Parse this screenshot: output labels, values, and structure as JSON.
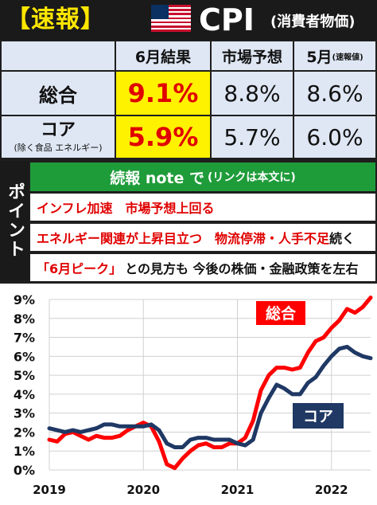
{
  "header": {
    "badge": "【速報】",
    "flag_icon": "us-flag-icon",
    "title": "CPI",
    "subtitle": "(消費者物価)"
  },
  "table": {
    "col_headers": [
      "6月結果",
      "市場予想",
      "5月"
    ],
    "col3_small": "(速報値)",
    "rows": [
      {
        "label": "総合",
        "sub": "",
        "result": "9.1%",
        "forecast": "8.8%",
        "prev": "8.6%"
      },
      {
        "label": "コア",
        "sub": "(除く食品 エネルギー)",
        "result": "5.9%",
        "forecast": "5.7%",
        "prev": "6.0%"
      }
    ],
    "highlight_color": "#fff200",
    "highlight_text_color": "#e00000"
  },
  "points": {
    "side_label": "ポイント",
    "note_title": "続報 note で",
    "note_sub": "(リンクは本文に)",
    "line1": "インフレ加速　市場予想上回る",
    "line2_red": "エネルギー関連が上昇目立つ　物流停滞・人手不足",
    "line2_black": "続く",
    "line3_red": "「6月ピーク」",
    "line3_black": "との見方も 今後の株価・金融政策を左右"
  },
  "chart_data": {
    "type": "line",
    "x": [
      "2019-01",
      "2019-02",
      "2019-03",
      "2019-04",
      "2019-05",
      "2019-06",
      "2019-07",
      "2019-08",
      "2019-09",
      "2019-10",
      "2019-11",
      "2019-12",
      "2020-01",
      "2020-02",
      "2020-03",
      "2020-04",
      "2020-05",
      "2020-06",
      "2020-07",
      "2020-08",
      "2020-09",
      "2020-10",
      "2020-11",
      "2020-12",
      "2021-01",
      "2021-02",
      "2021-03",
      "2021-04",
      "2021-05",
      "2021-06",
      "2021-07",
      "2021-08",
      "2021-09",
      "2021-10",
      "2021-11",
      "2021-12",
      "2022-01",
      "2022-02",
      "2022-03",
      "2022-04",
      "2022-05",
      "2022-06"
    ],
    "series": [
      {
        "name": "総合",
        "color": "#ff0000",
        "values": [
          1.6,
          1.5,
          1.9,
          2.0,
          1.8,
          1.6,
          1.8,
          1.7,
          1.7,
          1.8,
          2.1,
          2.3,
          2.5,
          2.3,
          1.5,
          0.3,
          0.1,
          0.6,
          1.0,
          1.3,
          1.4,
          1.2,
          1.2,
          1.4,
          1.4,
          1.7,
          2.6,
          4.2,
          5.0,
          5.4,
          5.4,
          5.3,
          5.4,
          6.2,
          6.8,
          7.0,
          7.5,
          7.9,
          8.5,
          8.3,
          8.6,
          9.1
        ]
      },
      {
        "name": "コア",
        "color": "#1f3864",
        "values": [
          2.2,
          2.1,
          2.0,
          2.1,
          2.0,
          2.1,
          2.2,
          2.4,
          2.4,
          2.3,
          2.3,
          2.3,
          2.3,
          2.4,
          2.1,
          1.4,
          1.2,
          1.2,
          1.6,
          1.7,
          1.7,
          1.6,
          1.6,
          1.6,
          1.4,
          1.3,
          1.6,
          3.0,
          3.8,
          4.5,
          4.3,
          4.0,
          4.0,
          4.6,
          4.9,
          5.5,
          6.0,
          6.4,
          6.5,
          6.2,
          6.0,
          5.9
        ]
      }
    ],
    "xticks": [
      "2019",
      "2020",
      "2021",
      "2022"
    ],
    "yticks": [
      "0%",
      "1%",
      "2%",
      "3%",
      "4%",
      "5%",
      "6%",
      "7%",
      "8%",
      "9%"
    ],
    "ylim": [
      0,
      9
    ],
    "grid": true,
    "label_total": "総合",
    "label_core": "コア"
  }
}
